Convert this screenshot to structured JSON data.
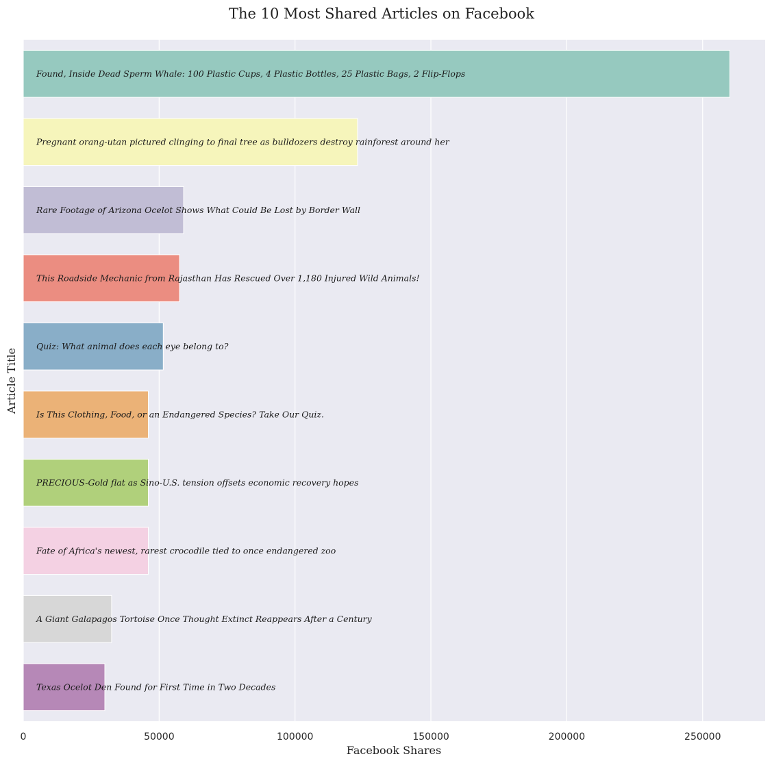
{
  "chart_data": {
    "type": "bar",
    "orientation": "horizontal",
    "title": "The 10 Most Shared Articles on Facebook",
    "xlabel": "Facebook Shares",
    "ylabel": "Article Title",
    "xlim": [
      0,
      273000
    ],
    "xticks": [
      0,
      50000,
      100000,
      150000,
      200000,
      250000
    ],
    "xtick_labels": [
      "0",
      "50000",
      "100000",
      "150000",
      "200000",
      "250000"
    ],
    "grid": true,
    "background": "#eaeaf2",
    "categories": [
      "Found, Inside Dead Sperm Whale: 100 Plastic Cups, 4 Plastic Bottles, 25 Plastic Bags, 2 Flip-Flops",
      "Pregnant orang-utan pictured clinging to final tree as bulldozers destroy rainforest around her",
      "Rare Footage of Arizona Ocelot Shows What Could Be Lost by Border Wall",
      "This Roadside Mechanic from Rajasthan Has Rescued Over 1,180 Injured Wild Animals!",
      "Quiz: What animal does each eye belong to?",
      "Is This Clothing, Food, or an Endangered Species? Take Our Quiz.",
      "PRECIOUS-Gold flat as Sino-U.S. tension offsets economic recovery hopes",
      "Fate of Africa's newest, rarest crocodile tied to once endangered zoo",
      "A Giant Galapagos Tortoise Once Thought Extinct Reappears After a Century",
      "Texas Ocelot Den Found for First Time in Two Decades"
    ],
    "values": [
      260000,
      123000,
      59000,
      57500,
      51500,
      46000,
      46000,
      46000,
      32500,
      30000
    ],
    "colors": [
      "#96c9bf",
      "#f6f5bb",
      "#c1bdd5",
      "#eb8d81",
      "#89aec8",
      "#ebb277",
      "#b0d07b",
      "#f4d1e3",
      "#d7d7d7",
      "#b688b7"
    ]
  }
}
